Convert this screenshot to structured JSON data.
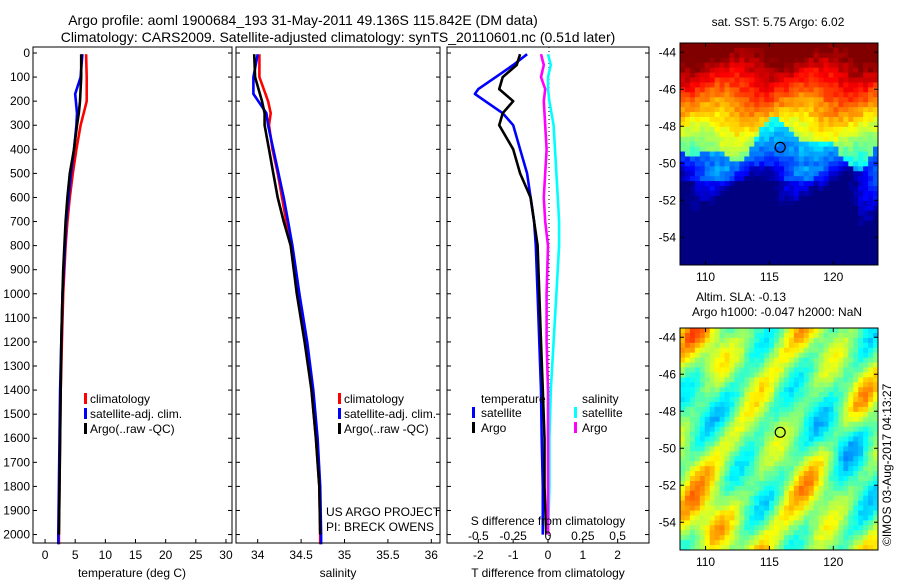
{
  "title_line1": "Argo profile: aoml 1900684_193 31-May-2011 49.136S 115.842E (DM data)",
  "title_line2": "Climatology: CARS2009. Satellite-adjusted climatology: synTS_20110601.nc (0.51d later)",
  "credit": "©IMOS 03-Aug-2017 04:13:27",
  "colors": {
    "climatology": "#ff0000",
    "satellite": "#0000ff",
    "argo": "#000000",
    "sal_satellite": "#00ffff",
    "sal_argo": "#ff00ff"
  },
  "depth_ticks": [
    0,
    100,
    200,
    300,
    400,
    500,
    600,
    700,
    800,
    900,
    1000,
    1100,
    1200,
    1300,
    1400,
    1500,
    1600,
    1700,
    1800,
    1900,
    2000
  ],
  "chart_data": [
    {
      "type": "line",
      "xlabel": "temperature (deg C)",
      "xlim": [
        -2,
        31
      ],
      "ylim": [
        2060,
        0
      ],
      "xticks": [
        0,
        5,
        10,
        15,
        20,
        25,
        30
      ],
      "legend": [
        "climatology",
        "satellite-adj. clim.",
        "Argo(..raw -QC)"
      ],
      "series": [
        {
          "name": "climatology",
          "depth": [
            5,
            100,
            200,
            250,
            300,
            400,
            500,
            600,
            700,
            800,
            900,
            1000,
            1200,
            1400,
            1600,
            1800,
            2000,
            2040
          ],
          "values": [
            6.8,
            6.9,
            6.9,
            6.4,
            5.9,
            5.2,
            4.6,
            4.1,
            3.7,
            3.4,
            3.2,
            3.0,
            2.8,
            2.6,
            2.5,
            2.4,
            2.3,
            2.3
          ]
        },
        {
          "name": "satellite-adj. clim.",
          "depth": [
            5,
            100,
            170,
            250,
            300,
            400,
            500,
            600,
            700,
            800,
            900,
            1000,
            1200,
            1400,
            1600,
            1800,
            2000,
            2040
          ],
          "values": [
            6.2,
            5.9,
            5.0,
            5.3,
            5.2,
            4.8,
            4.3,
            3.9,
            3.5,
            3.3,
            3.1,
            2.9,
            2.7,
            2.5,
            2.4,
            2.3,
            2.2,
            2.2
          ]
        },
        {
          "name": "Argo(..raw -QC)",
          "depth": [
            5,
            100,
            200,
            250,
            300,
            400,
            500,
            600,
            700,
            800,
            900,
            1000,
            1200,
            1400,
            1600,
            1800,
            2000
          ],
          "values": [
            6.0,
            6.0,
            5.8,
            5.6,
            5.3,
            4.8,
            4.1,
            3.7,
            3.4,
            3.2,
            3.0,
            2.9,
            2.7,
            2.6,
            2.5,
            2.4,
            2.3
          ]
        }
      ]
    },
    {
      "type": "line",
      "xlabel": "salinity",
      "xlim": [
        33.75,
        36.1
      ],
      "ylim": [
        2060,
        0
      ],
      "xticks": [
        34,
        34.5,
        35,
        35.5,
        36
      ],
      "legend": [
        "climatology",
        "satellite-adj. clim.",
        "Argo(..raw -QC)"
      ],
      "annotation": [
        "US ARGO PROJECT",
        "PI: BRECK OWENS"
      ],
      "series": [
        {
          "name": "climatology",
          "depth": [
            5,
            100,
            200,
            250,
            300,
            400,
            500,
            600,
            700,
            800,
            1000,
            1200,
            1400,
            1600,
            1800,
            2000,
            2040
          ],
          "values": [
            34.02,
            34.02,
            34.12,
            34.15,
            34.13,
            34.17,
            34.23,
            34.28,
            34.33,
            34.38,
            34.46,
            34.55,
            34.62,
            34.67,
            34.71,
            34.72,
            34.72
          ]
        },
        {
          "name": "satellite-adj. clim.",
          "depth": [
            5,
            100,
            170,
            250,
            300,
            400,
            500,
            600,
            700,
            800,
            1000,
            1200,
            1400,
            1600,
            1800,
            2000,
            2040
          ],
          "values": [
            34.0,
            33.95,
            33.95,
            34.1,
            34.12,
            34.18,
            34.24,
            34.3,
            34.35,
            34.4,
            34.48,
            34.57,
            34.64,
            34.69,
            34.72,
            34.73,
            34.73
          ]
        },
        {
          "name": "Argo(..raw -QC)",
          "depth": [
            5,
            100,
            200,
            250,
            300,
            400,
            500,
            600,
            700,
            800,
            1000,
            1200,
            1400,
            1600,
            1800,
            2000
          ],
          "values": [
            33.96,
            33.97,
            34.05,
            34.08,
            34.08,
            34.13,
            34.18,
            34.23,
            34.3,
            34.38,
            34.45,
            34.54,
            34.62,
            34.67,
            34.71,
            34.72
          ]
        }
      ]
    },
    {
      "type": "line",
      "xlabel": "T difference from climatology",
      "xlabel_top": "S difference from climatology",
      "xlim": [
        -2.9,
        2.9
      ],
      "ylim": [
        2060,
        0
      ],
      "xticks": [
        -2,
        -1,
        0,
        1,
        2
      ],
      "xticks_top": [
        -0.5,
        -0.25,
        0,
        0.25,
        0.5
      ],
      "legend_groups": [
        {
          "heading": "temperature",
          "items": [
            "satellite",
            "Argo"
          ]
        },
        {
          "heading": "salinity",
          "items": [
            "satellite",
            "Argo"
          ]
        }
      ],
      "series": [
        {
          "name": "temperature satellite",
          "depth": [
            5,
            50,
            100,
            150,
            170,
            200,
            250,
            300,
            400,
            500,
            600,
            700,
            800,
            1000,
            1200,
            1400,
            1600,
            1800,
            2000
          ],
          "values": [
            -0.6,
            -1.0,
            -1.5,
            -2.0,
            -2.1,
            -1.8,
            -1.3,
            -1.0,
            -0.8,
            -0.6,
            -0.5,
            -0.4,
            -0.35,
            -0.3,
            -0.25,
            -0.2,
            -0.18,
            -0.15,
            -0.15
          ]
        },
        {
          "name": "temperature Argo",
          "depth": [
            5,
            50,
            100,
            150,
            200,
            250,
            300,
            400,
            500,
            600,
            700,
            800,
            1000,
            1200,
            1400,
            1600,
            1800,
            2000
          ],
          "values": [
            -0.8,
            -0.9,
            -1.3,
            -1.4,
            -1.0,
            -1.3,
            -1.4,
            -1.0,
            -0.8,
            -0.5,
            -0.4,
            -0.3,
            -0.25,
            -0.2,
            -0.15,
            -0.1,
            -0.1,
            -0.05
          ]
        },
        {
          "name": "salinity satellite",
          "depth": [
            5,
            50,
            100,
            150,
            200,
            300,
            400,
            500,
            600,
            700,
            800,
            1000,
            1200,
            1400,
            1600,
            1800,
            2000
          ],
          "values": [
            0.0,
            0.02,
            0.0,
            0.0,
            0.01,
            0.04,
            0.05,
            0.06,
            0.07,
            0.08,
            0.08,
            0.06,
            0.04,
            0.02,
            0.01,
            0.01,
            0.0
          ]
        },
        {
          "name": "salinity Argo",
          "depth": [
            5,
            50,
            100,
            150,
            200,
            300,
            400,
            500,
            600,
            700,
            800,
            1000,
            1200,
            1400,
            1600,
            1800,
            2000
          ],
          "values": [
            -0.05,
            -0.03,
            -0.05,
            -0.02,
            -0.03,
            -0.02,
            -0.01,
            -0.02,
            -0.03,
            -0.02,
            0.0,
            -0.01,
            -0.01,
            0.0,
            0.0,
            0.0,
            0.0
          ]
        }
      ]
    },
    {
      "type": "heatmap",
      "title": "sat. SST: 5.75 Argo: 6.02",
      "xlim": [
        108,
        123.5
      ],
      "ylim": [
        -55.5,
        -43.5
      ],
      "xticks": [
        110,
        115,
        120
      ],
      "yticks": [
        -44,
        -46,
        -48,
        -50,
        -52,
        -54
      ],
      "marker": {
        "lon": 115.842,
        "lat": -49.136
      }
    },
    {
      "type": "heatmap",
      "title": "Altim. SLA: -0.13",
      "subtitle": "Argo h1000: -0.047 h2000: NaN",
      "xlim": [
        108,
        123.5
      ],
      "ylim": [
        -55.5,
        -43.5
      ],
      "xticks": [
        110,
        115,
        120
      ],
      "yticks": [
        -44,
        -46,
        -48,
        -50,
        -52,
        -54
      ],
      "marker": {
        "lon": 115.842,
        "lat": -49.136
      }
    }
  ]
}
